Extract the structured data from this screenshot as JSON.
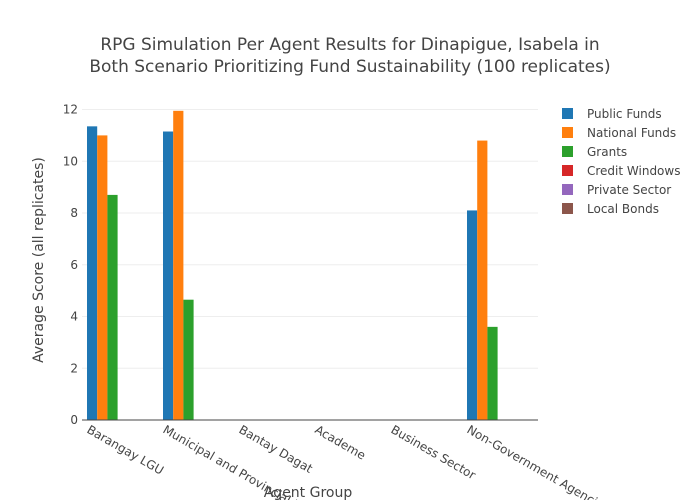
{
  "chart_data": {
    "type": "bar",
    "title_lines": [
      "RPG Simulation Per Agent Results for Dinapigue, Isabela in",
      "Both Scenario Prioritizing Fund Sustainability (100 replicates)"
    ],
    "xlabel": "Agent Group",
    "ylabel": "Average Score (all replicates)",
    "ylim": [
      0,
      12.6
    ],
    "yticks": [
      0,
      2,
      4,
      6,
      8,
      10,
      12
    ],
    "grid": true,
    "legend_position": "top-right",
    "categories": [
      "Barangay LGU",
      "Municipal and Provincial LGU",
      "Bantay Dagat",
      "Academe",
      "Business Sector",
      "Non-Government Agencies"
    ],
    "series": [
      {
        "name": "Public Funds",
        "color": "#1f77b4",
        "values": [
          11.35,
          11.15,
          0,
          0,
          0,
          8.1
        ]
      },
      {
        "name": "National Funds",
        "color": "#ff7f0e",
        "values": [
          11.0,
          11.95,
          0,
          0,
          0,
          10.8
        ]
      },
      {
        "name": "Grants",
        "color": "#2ca02c",
        "values": [
          8.7,
          4.65,
          0,
          0,
          0,
          3.6
        ]
      },
      {
        "name": "Credit Windows",
        "color": "#d62728",
        "values": [
          0,
          0,
          0,
          0,
          0,
          0
        ]
      },
      {
        "name": "Private Sector",
        "color": "#9467bd",
        "values": [
          0,
          0,
          0,
          0,
          0,
          0
        ]
      },
      {
        "name": "Local Bonds",
        "color": "#8c564b",
        "values": [
          0,
          0,
          0,
          0,
          0,
          0
        ]
      }
    ]
  }
}
